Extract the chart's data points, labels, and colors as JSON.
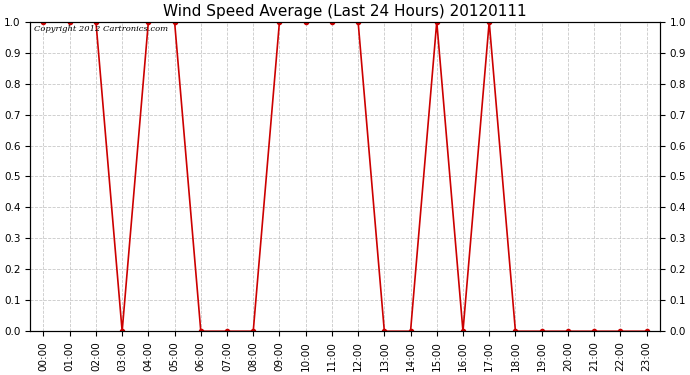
{
  "title": "Wind Speed Average (Last 24 Hours) 20120111",
  "copyright_text": "Copyright 2012 Cartronics.com",
  "line_color": "#cc0000",
  "background_color": "#ffffff",
  "grid_color": "#bbbbbb",
  "marker": "o",
  "marker_color": "#cc0000",
  "marker_size": 3,
  "line_width": 1.2,
  "ylim": [
    0.0,
    1.0
  ],
  "yticks": [
    0.0,
    0.1,
    0.2,
    0.3,
    0.4,
    0.5,
    0.6,
    0.7,
    0.8,
    0.9,
    1.0
  ],
  "hours": [
    0,
    1,
    2,
    3,
    4,
    5,
    6,
    7,
    8,
    9,
    10,
    11,
    12,
    13,
    14,
    15,
    16,
    17,
    18,
    19,
    20,
    21,
    22,
    23
  ],
  "values": [
    1.0,
    1.0,
    1.0,
    0.0,
    1.0,
    1.0,
    0.0,
    0.0,
    0.0,
    1.0,
    1.0,
    1.0,
    1.0,
    0.0,
    0.0,
    1.0,
    0.0,
    1.0,
    0.0,
    0.0,
    0.0,
    0.0,
    0.0,
    0.0
  ],
  "title_fontsize": 11,
  "tick_fontsize": 7.5,
  "xlabel_rotation": 90,
  "figwidth": 6.9,
  "figheight": 3.75,
  "dpi": 100
}
